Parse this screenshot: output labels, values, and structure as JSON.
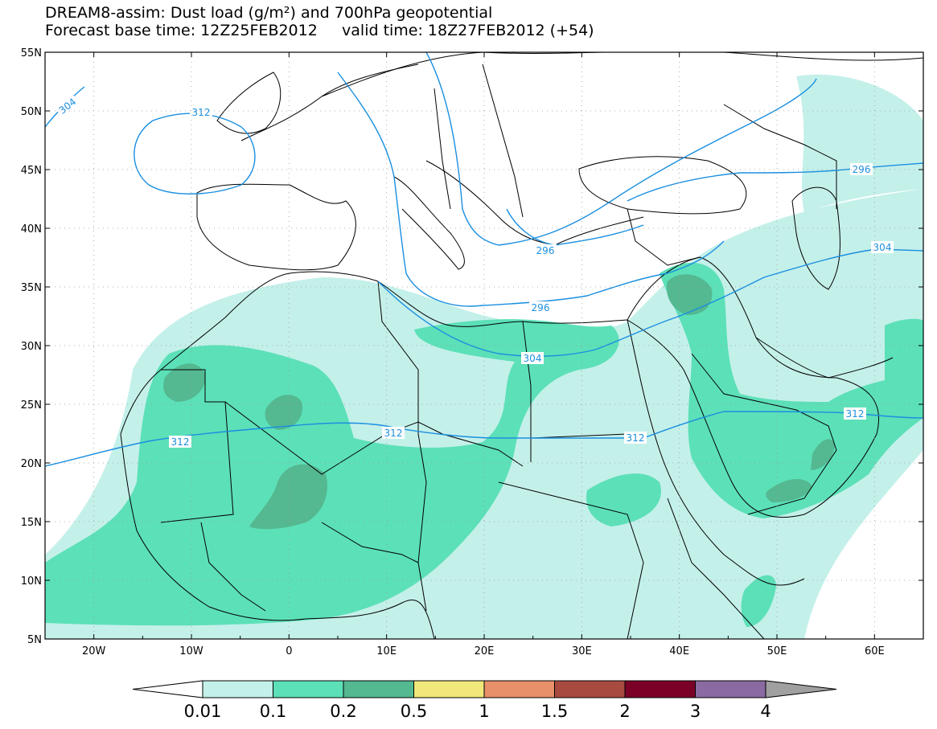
{
  "title": {
    "line1": "DREAM8-assim: Dust load (g/m²) and 700hPa geopotential",
    "line2": "Forecast base time: 12Z25FEB2012     valid time: 18Z27FEB2012 (+54)"
  },
  "axes": {
    "lat_labels": [
      "55N",
      "50N",
      "45N",
      "40N",
      "35N",
      "30N",
      "25N",
      "20N",
      "15N",
      "10N",
      "5N"
    ],
    "lon_labels": [
      "20W",
      "10W",
      "0",
      "10E",
      "20E",
      "30E",
      "40E",
      "50E",
      "60E"
    ]
  },
  "colorbar": {
    "labels": [
      "0.01",
      "0.1",
      "0.2",
      "0.5",
      "1",
      "1.5",
      "2",
      "3",
      "4"
    ],
    "colors": [
      "#c4f0ea",
      "#5ce0b8",
      "#54b890",
      "#f0e87a",
      "#e8906a",
      "#a84a40",
      "#7a0028",
      "#8a6aa0"
    ],
    "under_color": "#ffffff",
    "over_color": "#a0a0a0"
  },
  "contours": {
    "color": "#1a8fe0",
    "labels": [
      "304",
      "312",
      "296",
      "304",
      "312",
      "312",
      "312",
      "296",
      "304",
      "312",
      "296"
    ]
  }
}
